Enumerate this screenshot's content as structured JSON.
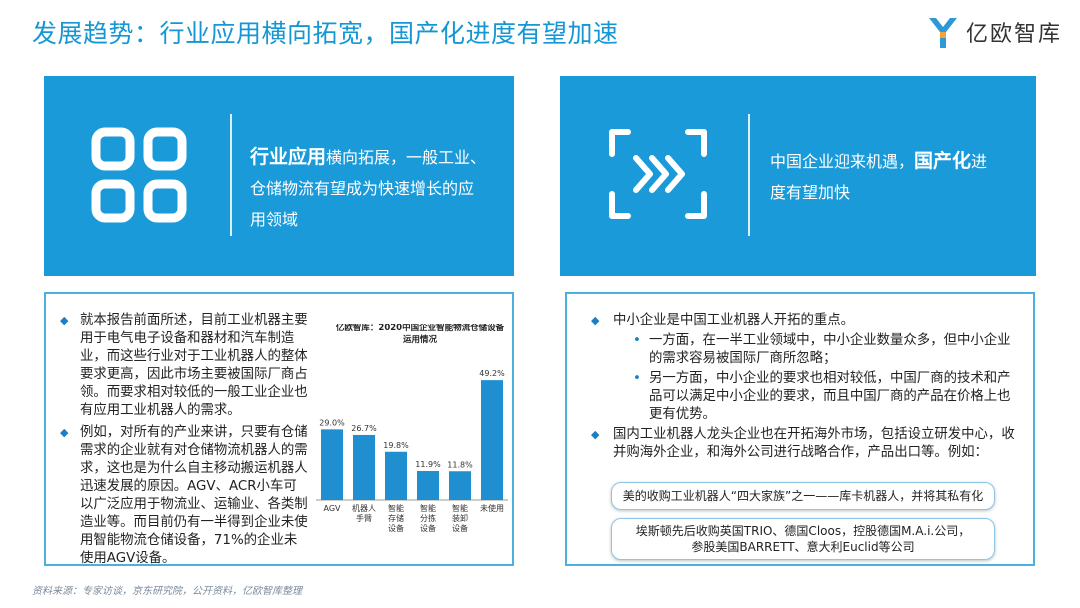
{
  "header": {
    "title": "发展趋势：行业应用横向拓宽，国产化进度有望加速",
    "logo_text": "亿欧智库"
  },
  "left_banner": {
    "strong": "行业应用",
    "line1_rest": "横向拓展，一般工业、",
    "line2": "仓储物流有望成为快速增长的应",
    "line3": "用领域"
  },
  "right_banner": {
    "line1_pre": "中国企业迎来机遇，",
    "strong": "国产化",
    "line1_post": "进",
    "line2": "度有望加快"
  },
  "left_panel": {
    "bullets": [
      "就本报告前面所述，目前工业机器主要用于电气电子设备和器材和汽车制造业，而这些行业对于工业机器人的整体要求更高，因此市场主要被国际厂商占领。而要求相对较低的一般工业企业也有应用工业机器人的需求。",
      "例如，对所有的产业来讲，只要有仓储需求的企业就有对仓储物流机器人的需求，这也是为什么自主移动搬运机器人迅速发展的原因。AGV、ACR小车可以广泛应用于物流业、运输业、各类制造业等。而目前仍有一半得到企业未使用智能物流仓储设备，71%的企业未使用AGV设备。"
    ]
  },
  "chart_data": {
    "type": "bar",
    "title": "亿欧智库：2020中国企业智能物流仓储设备运用情况",
    "title_line1": "亿欧智库：2020中国企业智能物流仓储设备",
    "title_line2": "运用情况",
    "categories": [
      "AGV",
      "机器人手臂",
      "智能存储设备",
      "智能分拣设备",
      "智能装卸设备",
      "未使用"
    ],
    "category_lines": [
      [
        "AGV"
      ],
      [
        "机器人",
        "手臂"
      ],
      [
        "智能",
        "存储",
        "设备"
      ],
      [
        "智能",
        "分拣",
        "设备"
      ],
      [
        "智能",
        "装卸",
        "设备"
      ],
      [
        "未使用"
      ]
    ],
    "values": [
      29.0,
      26.7,
      19.8,
      11.9,
      11.8,
      49.2
    ],
    "labels": [
      "29.0%",
      "26.7%",
      "19.8%",
      "11.9%",
      "11.8%",
      "49.2%"
    ],
    "ylim": [
      0,
      55
    ],
    "unit": "%",
    "grid": false,
    "bar_color": "#1f8fd0"
  },
  "right_panel": {
    "bullet1": "中小企业是中国工业机器人开拓的重点。",
    "sub1": "一方面，在一半工业领域中，中小企业数量众多，但中小企业的需求容易被国际厂商所忽略；",
    "sub2": "另一方面，中小企业的要求也相对较低，中国厂商的技术和产品可以满足中小企业的要求，而且中国厂商的产品在价格上也更有优势。",
    "bullet2": "国内工业机器人龙头企业也在开拓海外市场，包括设立研发中心，收并购海外企业，和海外公司进行战略合作，产品出口等。例如：",
    "box1": "美的收购工业机器人“四大家族”之一——库卡机器人，并将其私有化",
    "box2_line1": "埃斯顿先后收购英国TRIO、德国Cloos，控股德国M.A.i.公司，",
    "box2_line2": "参股美国BARRETT、意大利Euclid等公司"
  },
  "footer": {
    "source": "资料来源：专家访谈，京东研究院，公开资料，亿欧智库整理"
  },
  "colors": {
    "accent": "#1697d4",
    "banner": "#1a9ad8",
    "panel_border": "#4ab0e0"
  }
}
